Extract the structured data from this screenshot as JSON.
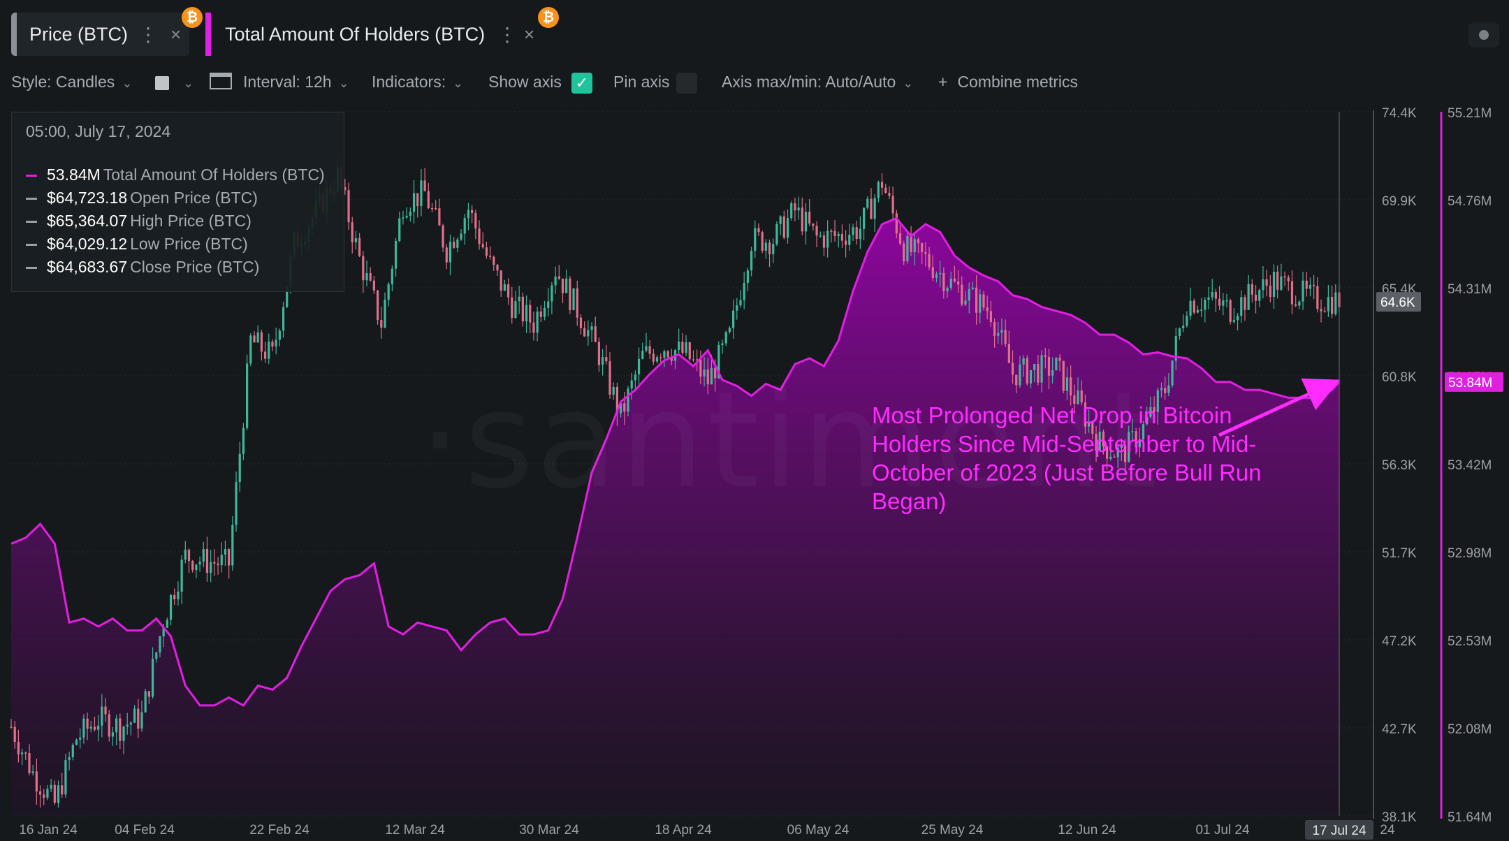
{
  "tabs": [
    {
      "label": "Price (BTC)"
    },
    {
      "label": "Total Amount Of Holders (BTC)"
    }
  ],
  "icons": {
    "coin": "bitcoin-icon",
    "menu": "kebab-icon",
    "close": "close-icon"
  },
  "badge_glyph": "₿",
  "toolbar": {
    "style": "Style: Candles",
    "interval": "Interval: 12h",
    "indicators": "Indicators:",
    "show_axis": "Show axis",
    "pin_axis": "Pin axis",
    "axis_maxmin": "Axis max/min: Auto/Auto",
    "combine": "Combine metrics",
    "check_glyph": "✓",
    "plus_glyph": "+",
    "chevron_glyph": "⌄",
    "menu_glyph": "⋮",
    "close_glyph": "×"
  },
  "legend": {
    "timestamp": "05:00, July 17, 2024",
    "rows": [
      {
        "value": "53.84M",
        "label": "Total Amount Of Holders (BTC)",
        "color": "#e020e0"
      },
      {
        "value": "$64,723.18",
        "label": "Open Price (BTC)",
        "color": "#9aa0a6"
      },
      {
        "value": "$65,364.07",
        "label": "High Price (BTC)",
        "color": "#9aa0a6"
      },
      {
        "value": "$64,029.12",
        "label": "Low Price (BTC)",
        "color": "#9aa0a6"
      },
      {
        "value": "$64,683.67",
        "label": "Close Price (BTC)",
        "color": "#9aa0a6"
      }
    ]
  },
  "annotation": "Most Prolonged Net Drop in Bitcoin Holders Since Mid-September to Mid-October of 2023 (Just Before Bull Run Began)",
  "watermark": "·santiment",
  "colors": {
    "background": "#15191c",
    "holders": "#e020e0",
    "candle_up": "#3fb79a",
    "candle_down": "#e0708a",
    "grid": "#2a3034",
    "axis_text": "#9aa0a6"
  },
  "chart_data": {
    "type": "line",
    "title": "",
    "x_labels": [
      "16 Jan 24",
      "04 Feb 24",
      "22 Feb 24",
      "12 Mar 24",
      "30 Mar 24",
      "18 Apr 24",
      "06 May 24",
      "25 May 24",
      "12 Jun 24",
      "01 Jul 24",
      "17 Jul 24"
    ],
    "xlabel_tail": "24",
    "price_axis": {
      "ticks": [
        "74.4K",
        "69.9K",
        "65.4K",
        "60.8K",
        "56.3K",
        "51.7K",
        "47.2K",
        "42.7K",
        "38.1K"
      ],
      "range": [
        38100,
        74400
      ],
      "current": "64.6K"
    },
    "holders_axis": {
      "ticks": [
        "55.21M",
        "54.76M",
        "54.31M",
        "53.87M",
        "53.42M",
        "52.98M",
        "52.53M",
        "52.08M",
        "51.64M"
      ],
      "range": [
        51.64,
        55.21
      ],
      "current": "53.84M"
    },
    "series": [
      {
        "name": "Total Amount Of Holders (BTC)",
        "unit": "M",
        "x_days": [
          0,
          2,
          4,
          6,
          8,
          10,
          12,
          14,
          16,
          18,
          20,
          22,
          24,
          26,
          28,
          30,
          32,
          34,
          36,
          38,
          40,
          42,
          44,
          46,
          48,
          50,
          52,
          54,
          56,
          58,
          60,
          62,
          64,
          66,
          68,
          70,
          72,
          74,
          76,
          78,
          80,
          82,
          84,
          86,
          88,
          90,
          92,
          94,
          96,
          98,
          100,
          102,
          104,
          106,
          108,
          110,
          112,
          114,
          116,
          118,
          120,
          122,
          124,
          126,
          128,
          130,
          132,
          134,
          136,
          138,
          140,
          142,
          144,
          146,
          148,
          150,
          152,
          154,
          156,
          158,
          160,
          162,
          164,
          166,
          168,
          170,
          172,
          174,
          176,
          178,
          180,
          182,
          183
        ],
        "values": [
          53.02,
          53.05,
          53.12,
          53.02,
          52.62,
          52.64,
          52.6,
          52.64,
          52.58,
          52.58,
          52.64,
          52.55,
          52.3,
          52.2,
          52.2,
          52.24,
          52.2,
          52.3,
          52.28,
          52.34,
          52.5,
          52.64,
          52.78,
          52.84,
          52.86,
          52.92,
          52.6,
          52.56,
          52.62,
          52.6,
          52.58,
          52.48,
          52.56,
          52.62,
          52.64,
          52.56,
          52.56,
          52.58,
          52.74,
          53.05,
          53.38,
          53.55,
          53.74,
          53.8,
          53.88,
          53.95,
          53.98,
          53.92,
          54.0,
          53.85,
          53.82,
          53.77,
          53.83,
          53.8,
          53.93,
          53.96,
          53.92,
          54.05,
          54.3,
          54.5,
          54.64,
          54.67,
          54.58,
          54.64,
          54.6,
          54.48,
          54.42,
          54.38,
          54.35,
          54.28,
          54.26,
          54.22,
          54.2,
          54.18,
          54.14,
          54.08,
          54.08,
          54.04,
          53.98,
          53.99,
          53.97,
          53.96,
          53.91,
          53.84,
          53.84,
          53.8,
          53.8,
          53.78,
          53.76,
          53.76,
          53.76,
          53.8,
          53.84
        ]
      },
      {
        "name": "Price (BTC)",
        "style": "candles",
        "x_days": [
          0,
          3,
          6,
          9,
          12,
          15,
          18,
          21,
          24,
          27,
          30,
          33,
          36,
          39,
          42,
          45,
          48,
          51,
          54,
          57,
          60,
          63,
          66,
          69,
          72,
          75,
          78,
          81,
          84,
          87,
          90,
          93,
          96,
          99,
          102,
          105,
          108,
          111,
          114,
          117,
          120,
          123,
          126,
          129,
          132,
          135,
          138,
          141,
          144,
          147,
          150,
          153,
          156,
          159,
          162,
          165,
          168,
          171,
          174,
          177,
          180,
          183
        ],
        "values": [
          42700,
          40300,
          38700,
          42100,
          43100,
          42700,
          43200,
          48200,
          51500,
          51200,
          51100,
          62600,
          61800,
          67600,
          69200,
          71100,
          66800,
          63500,
          69700,
          70200,
          67300,
          69400,
          66500,
          64500,
          63500,
          66300,
          64200,
          61900,
          58700,
          61800,
          62300,
          61900,
          60500,
          62800,
          67800,
          67800,
          69300,
          67900,
          68000,
          68400,
          70800,
          67400,
          66800,
          65700,
          64900,
          64100,
          60900,
          61100,
          61200,
          59400,
          57300,
          56700,
          58100,
          60100,
          64600,
          64700,
          64200,
          65000,
          65700,
          65100,
          64700,
          64684
        ]
      }
    ]
  }
}
